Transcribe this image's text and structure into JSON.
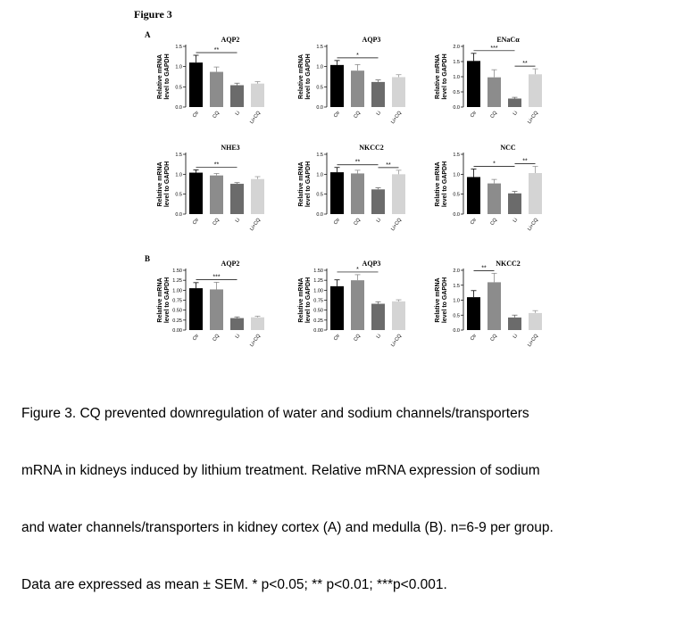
{
  "figure_title": "Figure 3",
  "panel_labels": {
    "a": "A",
    "b": "B"
  },
  "caption_lines": [
    "Figure 3. CQ prevented downregulation of water and sodium channels/transporters",
    "mRNA in kidneys induced by lithium treatment. Relative mRNA expression of sodium",
    "and water channels/transporters in kidney cortex (A) and medulla (B). n=6-9 per group.",
    "Data are expressed as mean ± SEM. * p<0.05; ** p<0.01; ***p<0.001."
  ],
  "colors": {
    "ctr": "#000000",
    "cq": "#8c8c8c",
    "li": "#6b6b6b",
    "li_cq": "#d4d4d4"
  },
  "chart_data": [
    {
      "type": "bar",
      "panel": "A",
      "title": "AQP2",
      "ylabel": "Relative mRNA\nlevel to GAPDH",
      "categories": [
        "Ctr",
        "CQ",
        "Li",
        "Li+CQ"
      ],
      "values": [
        1.1,
        0.87,
        0.54,
        0.58
      ],
      "errors": [
        0.18,
        0.12,
        0.05,
        0.05
      ],
      "ylim": [
        0,
        1.5
      ],
      "yticks": [
        "0.0",
        "0.5",
        "1.0",
        "1.5"
      ],
      "significance": [
        {
          "from": 0,
          "to": 2,
          "label": "**"
        }
      ]
    },
    {
      "type": "bar",
      "panel": "A",
      "title": "AQP3",
      "ylabel": "Relative mRNA\nlevel to GAPDH",
      "categories": [
        "Ctr",
        "CQ",
        "Li",
        "Li+CQ"
      ],
      "values": [
        1.04,
        0.9,
        0.62,
        0.74
      ],
      "errors": [
        0.11,
        0.15,
        0.05,
        0.06
      ],
      "ylim": [
        0,
        1.5
      ],
      "yticks": [
        "0.0",
        "0.5",
        "1.0",
        "1.5"
      ],
      "significance": [
        {
          "from": 0,
          "to": 2,
          "label": "*"
        }
      ]
    },
    {
      "type": "bar",
      "panel": "A",
      "title": "ENaCα",
      "ylabel": "Relative mRNA\nlevel to GAPDH",
      "categories": [
        "Ctr",
        "CQ",
        "Li",
        "Li+CQ"
      ],
      "values": [
        1.52,
        0.98,
        0.28,
        1.08
      ],
      "errors": [
        0.25,
        0.25,
        0.04,
        0.18
      ],
      "ylim": [
        0,
        2.0
      ],
      "yticks": [
        "0.0",
        "0.5",
        "1.0",
        "1.5",
        "2.0"
      ],
      "significance": [
        {
          "from": 0,
          "to": 2,
          "label": "***"
        },
        {
          "from": 2,
          "to": 3,
          "label": "**"
        }
      ]
    },
    {
      "type": "bar",
      "panel": "A",
      "title": "NHE3",
      "ylabel": "Relative mRNA\nlevel to GAPDH",
      "categories": [
        "Ctr",
        "CQ",
        "Li",
        "Li+CQ"
      ],
      "values": [
        1.04,
        0.97,
        0.76,
        0.88
      ],
      "errors": [
        0.07,
        0.05,
        0.03,
        0.06
      ],
      "ylim": [
        0,
        1.5
      ],
      "yticks": [
        "0.0",
        "0.5",
        "1.0",
        "1.5"
      ],
      "significance": [
        {
          "from": 0,
          "to": 2,
          "label": "**"
        }
      ]
    },
    {
      "type": "bar",
      "panel": "A",
      "title": "NKCC2",
      "ylabel": "Relative mRNA\nlevel to GAPDH",
      "categories": [
        "Ctr",
        "CQ",
        "Li",
        "Li+CQ"
      ],
      "values": [
        1.05,
        1.02,
        0.62,
        1.0
      ],
      "errors": [
        0.12,
        0.08,
        0.04,
        0.1
      ],
      "ylim": [
        0,
        1.5
      ],
      "yticks": [
        "0.0",
        "0.5",
        "1.0",
        "1.5"
      ],
      "significance": [
        {
          "from": 0,
          "to": 2,
          "label": "**"
        },
        {
          "from": 2,
          "to": 3,
          "label": "**"
        }
      ]
    },
    {
      "type": "bar",
      "panel": "A",
      "title": "NCC",
      "ylabel": "Relative mRNA\nlevel to GAPDH",
      "categories": [
        "Ctr",
        "CQ",
        "Li",
        "Li+CQ"
      ],
      "values": [
        0.93,
        0.77,
        0.52,
        1.03
      ],
      "errors": [
        0.2,
        0.1,
        0.05,
        0.17
      ],
      "ylim": [
        0,
        1.5
      ],
      "yticks": [
        "0.0",
        "0.5",
        "1.0",
        "1.5"
      ],
      "significance": [
        {
          "from": 0,
          "to": 2,
          "label": "*"
        },
        {
          "from": 2,
          "to": 3,
          "label": "**"
        }
      ]
    },
    {
      "type": "bar",
      "panel": "B",
      "title": "AQP2",
      "ylabel": "Relative mRNA\nlevel to GAPDH",
      "categories": [
        "Ctr",
        "CQ",
        "Li",
        "Li+CQ"
      ],
      "values": [
        1.05,
        1.02,
        0.3,
        0.32
      ],
      "errors": [
        0.14,
        0.18,
        0.03,
        0.03
      ],
      "ylim": [
        0,
        1.5
      ],
      "yticks": [
        "0.00",
        "0.25",
        "0.50",
        "0.75",
        "1.00",
        "1.25",
        "1.50"
      ],
      "significance": [
        {
          "from": 0,
          "to": 2,
          "label": "***"
        }
      ]
    },
    {
      "type": "bar",
      "panel": "B",
      "title": "AQP3",
      "ylabel": "Relative mRNA\nlevel to GAPDH",
      "categories": [
        "Ctr",
        "CQ",
        "Li",
        "Li+CQ"
      ],
      "values": [
        1.1,
        1.25,
        0.66,
        0.72
      ],
      "errors": [
        0.16,
        0.14,
        0.05,
        0.04
      ],
      "ylim": [
        0,
        1.5
      ],
      "yticks": [
        "0.00",
        "0.25",
        "0.50",
        "0.75",
        "1.00",
        "1.25",
        "1.50"
      ],
      "significance": [
        {
          "from": 0,
          "to": 2,
          "label": "*"
        }
      ]
    },
    {
      "type": "bar",
      "panel": "B",
      "title": "NKCC2",
      "ylabel": "Relative mRNA\nlevel to GAPDH",
      "categories": [
        "Ctr",
        "CQ",
        "Li",
        "Li+CQ"
      ],
      "values": [
        1.1,
        1.6,
        0.42,
        0.57
      ],
      "errors": [
        0.22,
        0.3,
        0.08,
        0.08
      ],
      "ylim": [
        0,
        2.0
      ],
      "yticks": [
        "0.0",
        "0.5",
        "1.0",
        "1.5",
        "2.0"
      ],
      "significance": [
        {
          "from": 0,
          "to": 1,
          "label": "**"
        }
      ]
    }
  ]
}
